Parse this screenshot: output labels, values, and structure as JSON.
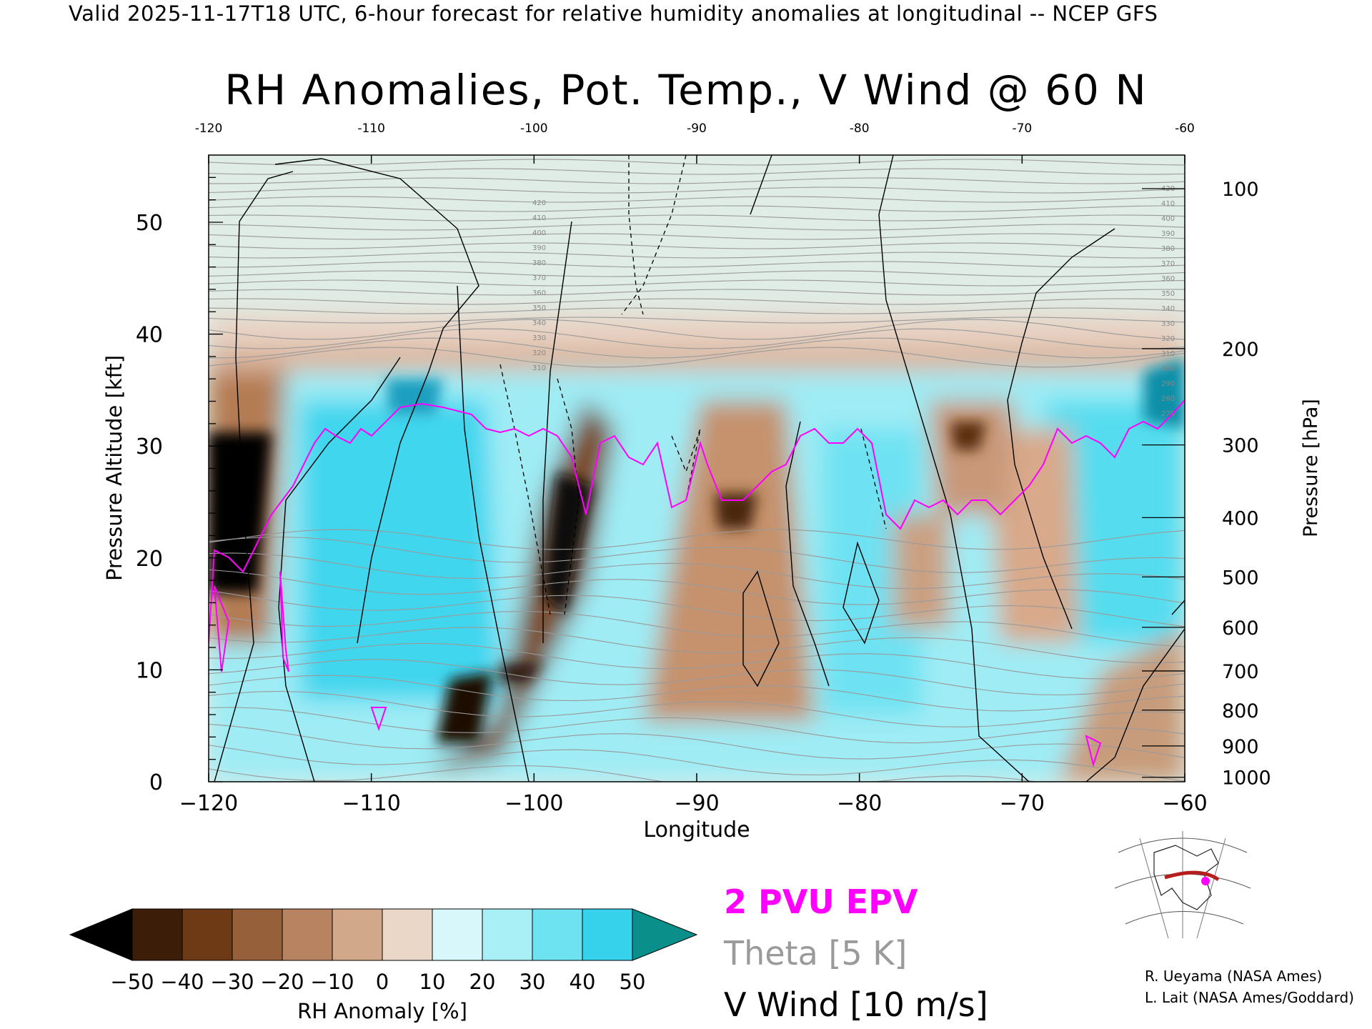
{
  "header": {
    "text": "Valid 2025-11-17T18 UTC, 6-hour forecast for relative humidity anomalies at longitudinal -- NCEP GFS"
  },
  "chart_data": {
    "type": "heatmap",
    "title": "RH Anomalies, Pot. Temp., V Wind @ 60 N",
    "xlabel": "Longitude",
    "ylabel": "Pressure Altitude [kft]",
    "y2label": "Pressure [hPa]",
    "xlim": [
      -120,
      -60
    ],
    "ylim": [
      0,
      56
    ],
    "x_ticks": [
      -120,
      -110,
      -100,
      -90,
      -80,
      -70,
      -60
    ],
    "x_tick_labels": [
      "−120",
      "−110",
      "−100",
      "−90",
      "−80",
      "−70",
      "−60"
    ],
    "top_tick_labels": [
      "-120",
      "-110",
      "-100",
      "-90",
      "-80",
      "-70",
      "-60"
    ],
    "y_ticks": [
      0,
      10,
      20,
      30,
      40,
      50
    ],
    "pressure_ticks": [
      {
        "hpa": 100,
        "kft": 53.0
      },
      {
        "hpa": 200,
        "kft": 38.7
      },
      {
        "hpa": 300,
        "kft": 30.1
      },
      {
        "hpa": 400,
        "kft": 23.6
      },
      {
        "hpa": 500,
        "kft": 18.3
      },
      {
        "hpa": 600,
        "kft": 13.8
      },
      {
        "hpa": 700,
        "kft": 9.9
      },
      {
        "hpa": 800,
        "kft": 6.4
      },
      {
        "hpa": 900,
        "kft": 3.2
      },
      {
        "hpa": 1000,
        "kft": 0.4
      }
    ],
    "theta_labels": [
      "420",
      "410",
      "400",
      "390",
      "380",
      "370",
      "360",
      "350",
      "340",
      "330",
      "320",
      "310",
      "300",
      "290",
      "280",
      "270"
    ],
    "colorbar": {
      "label": "RH Anomaly [%]",
      "ticks": [
        "−50",
        "−40",
        "−30",
        "−20",
        "−10",
        "0",
        "10",
        "20",
        "30",
        "40",
        "50"
      ],
      "colors": [
        "#3b1d08",
        "#6e3a15",
        "#95603a",
        "#b88360",
        "#d2a88a",
        "#ead7c8",
        "#d7f7fa",
        "#a8f0f6",
        "#6de3f2",
        "#36d2ec",
        "#0aa6c8"
      ],
      "under_color": "#000000",
      "over_color": "#0a8f8a"
    },
    "legend": [
      {
        "label": "2 PVU EPV",
        "color": "#ff00ff"
      },
      {
        "label": "Theta [5 K]",
        "color": "#9a9a9a"
      },
      {
        "label": "V Wind [10 m/s]",
        "color": "#000000"
      }
    ]
  },
  "credits": [
    "R. Ueyama (NASA Ames)",
    "L. Lait (NASA Ames/Goddard)"
  ]
}
